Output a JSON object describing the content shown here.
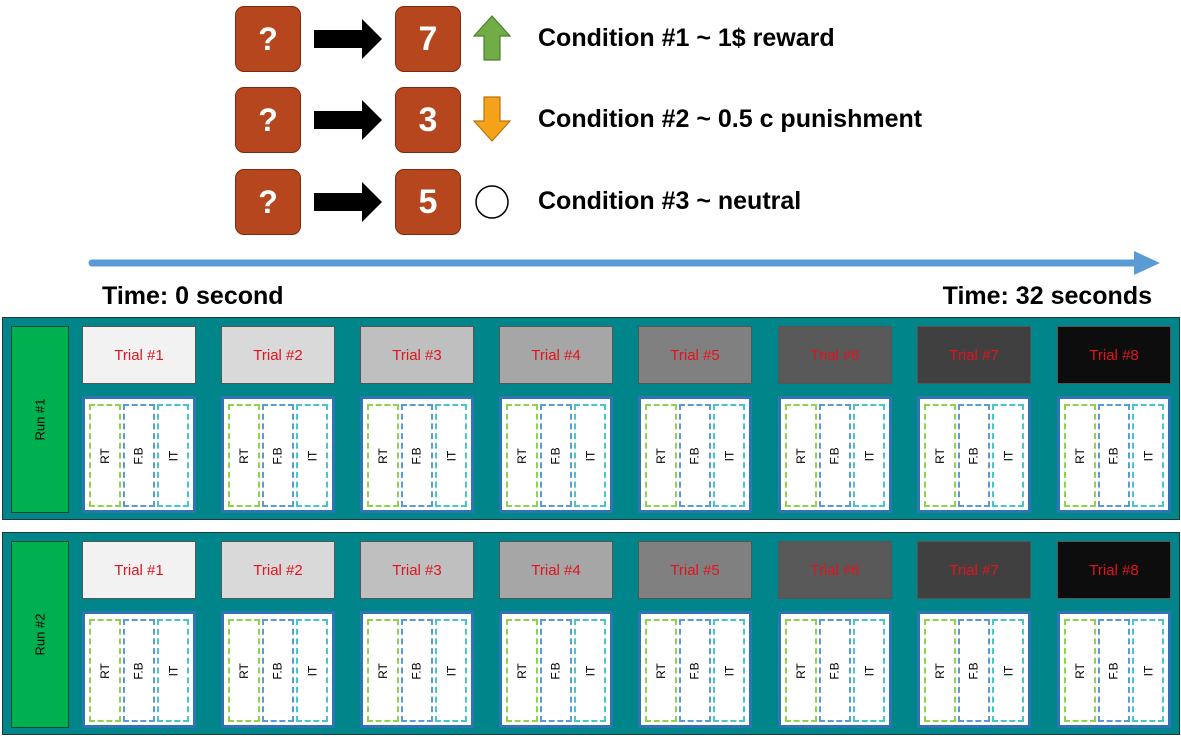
{
  "conditions": [
    {
      "cue": "?",
      "outcome": "7",
      "indicator": "up-arrow-icon",
      "indicator_color": "#70ad47",
      "label": "Condition #1 ~ 1$ reward"
    },
    {
      "cue": "?",
      "outcome": "3",
      "indicator": "down-arrow-icon",
      "indicator_color": "#f5a21b",
      "label": "Condition #2 ~ 0.5 c punishment"
    },
    {
      "cue": "?",
      "outcome": "5",
      "indicator": "circle-icon",
      "indicator_color": "#ffffff",
      "label": "Condition #3 ~ neutral"
    }
  ],
  "timeline": {
    "start_label": "Time: 0 second",
    "end_label": "Time: 32 seconds",
    "arrow_color": "#5b9bd5"
  },
  "runs": [
    {
      "label": "Run #1"
    },
    {
      "label": "Run #2"
    }
  ],
  "trials": [
    {
      "label": "Trial #1",
      "fill": "#f2f2f2"
    },
    {
      "label": "Trial #2",
      "fill": "#d9d9d9"
    },
    {
      "label": "Trial #3",
      "fill": "#bfbfbf"
    },
    {
      "label": "Trial #4",
      "fill": "#a6a6a6"
    },
    {
      "label": "Trial #5",
      "fill": "#808080"
    },
    {
      "label": "Trial #6",
      "fill": "#595959"
    },
    {
      "label": "Trial #7",
      "fill": "#404040"
    },
    {
      "label": "Trial #8",
      "fill": "#0d0d0d"
    }
  ],
  "phases": [
    {
      "key": "rt",
      "label": "RT"
    },
    {
      "key": "fb",
      "label": "F.B"
    },
    {
      "key": "it",
      "label": "IT"
    }
  ],
  "colors": {
    "box_fill": "#b5461d",
    "panel_fill": "#00868a",
    "run_label_fill": "#00b050",
    "trial_text": "#e0141e"
  }
}
